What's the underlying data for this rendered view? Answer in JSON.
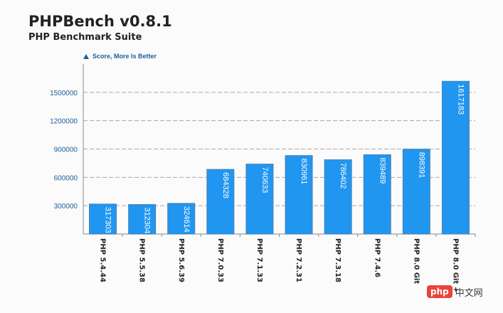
{
  "header": {
    "title": "PHPBench v0.8.1",
    "subtitle": "PHP Benchmark Suite"
  },
  "watermark": {
    "logo": "php",
    "text": "中文网"
  },
  "chart_data": {
    "type": "bar",
    "title": "PHPBench v0.8.1",
    "subtitle": "PHP Benchmark Suite",
    "legend_note": "Score, More Is Better",
    "categories": [
      "PHP 5.4.44",
      "PHP 5.5.38",
      "PHP 5.6.39",
      "PHP 7.0.33",
      "PHP 7.1.33",
      "PHP 7.2.31",
      "PHP 7.3.18",
      "PHP 7.4.6",
      "PHP 8.0 Git",
      "PHP 8.0 Git +"
    ],
    "values": [
      317303,
      312304,
      324614,
      684328,
      740633,
      830961,
      786402,
      839489,
      898391,
      1617183
    ],
    "value_labels": [
      "317303",
      "312304",
      "324614",
      "684328",
      "740633",
      "830961",
      "786402",
      "839489",
      "898391",
      "1617183"
    ],
    "y_ticks": [
      300000,
      600000,
      900000,
      1200000,
      1500000
    ],
    "y_tick_labels": [
      "300000",
      "600000",
      "900000",
      "1200000",
      "1500000"
    ],
    "ylim": [
      0,
      1800000
    ],
    "grid": true,
    "colors": {
      "bar": "#2196f0",
      "bar_border": "#4a7fb0",
      "axis_text": "#1a5f9e",
      "grid": "#a9a9a9"
    }
  }
}
